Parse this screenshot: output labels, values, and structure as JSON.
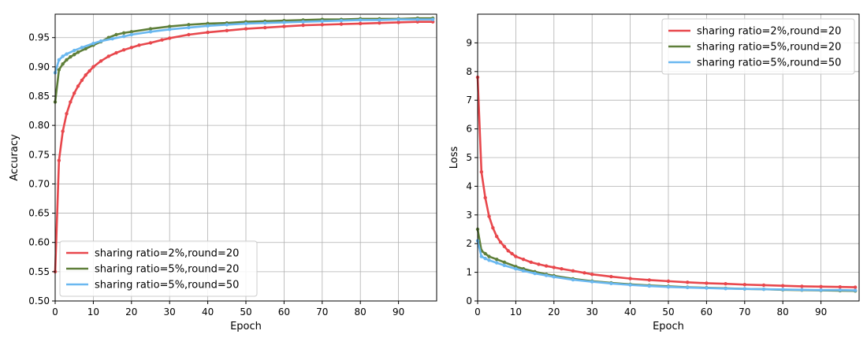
{
  "chart_data": [
    {
      "type": "line",
      "xlabel": "Epoch",
      "ylabel": "Accuracy",
      "xlim": [
        0,
        100
      ],
      "ylim": [
        0.5,
        0.99
      ],
      "xticks": [
        0,
        10,
        20,
        30,
        40,
        50,
        60,
        70,
        80,
        90
      ],
      "yticks": [
        0.5,
        0.55,
        0.6,
        0.65,
        0.7,
        0.75,
        0.8,
        0.85,
        0.9,
        0.95
      ],
      "grid": true,
      "legend_position": "lower-left",
      "series": [
        {
          "name": "sharing ratio=2%,round=20",
          "color": "#e8474c",
          "x": [
            0,
            1,
            2,
            3,
            4,
            5,
            6,
            7,
            8,
            9,
            10,
            12,
            14,
            16,
            18,
            20,
            22,
            25,
            28,
            30,
            35,
            40,
            45,
            50,
            55,
            60,
            65,
            70,
            75,
            80,
            85,
            90,
            95,
            99
          ],
          "values": [
            0.55,
            0.74,
            0.79,
            0.82,
            0.84,
            0.855,
            0.867,
            0.877,
            0.886,
            0.893,
            0.9,
            0.91,
            0.918,
            0.924,
            0.929,
            0.933,
            0.937,
            0.941,
            0.946,
            0.949,
            0.955,
            0.959,
            0.962,
            0.965,
            0.967,
            0.969,
            0.971,
            0.972,
            0.973,
            0.974,
            0.975,
            0.976,
            0.977,
            0.977
          ]
        },
        {
          "name": "sharing ratio=5%,round=20",
          "color": "#5f7f3a",
          "x": [
            0,
            1,
            2,
            3,
            4,
            5,
            6,
            8,
            10,
            12,
            14,
            16,
            18,
            20,
            25,
            30,
            35,
            40,
            45,
            50,
            55,
            60,
            65,
            70,
            75,
            80,
            85,
            90,
            95,
            99
          ],
          "values": [
            0.84,
            0.895,
            0.905,
            0.912,
            0.917,
            0.921,
            0.925,
            0.931,
            0.937,
            0.943,
            0.95,
            0.955,
            0.958,
            0.96,
            0.965,
            0.969,
            0.972,
            0.974,
            0.975,
            0.977,
            0.978,
            0.979,
            0.98,
            0.981,
            0.981,
            0.982,
            0.982,
            0.982,
            0.983,
            0.983
          ]
        },
        {
          "name": "sharing ratio=5%,round=50",
          "color": "#6ab8f0",
          "x": [
            0,
            1,
            2,
            3,
            5,
            7,
            10,
            12,
            15,
            18,
            20,
            25,
            30,
            35,
            40,
            45,
            50,
            55,
            60,
            65,
            70,
            75,
            80,
            85,
            90,
            95,
            99
          ],
          "values": [
            0.89,
            0.912,
            0.918,
            0.922,
            0.928,
            0.933,
            0.94,
            0.944,
            0.948,
            0.952,
            0.955,
            0.96,
            0.964,
            0.967,
            0.97,
            0.972,
            0.974,
            0.975,
            0.976,
            0.977,
            0.978,
            0.979,
            0.98,
            0.98,
            0.981,
            0.981,
            0.981
          ]
        }
      ]
    },
    {
      "type": "line",
      "xlabel": "Epoch",
      "ylabel": "Loss",
      "xlim": [
        0,
        100
      ],
      "ylim": [
        0,
        10
      ],
      "xticks": [
        0,
        10,
        20,
        30,
        40,
        50,
        60,
        70,
        80,
        90
      ],
      "yticks": [
        0,
        1,
        2,
        3,
        4,
        5,
        6,
        7,
        8,
        9
      ],
      "grid": true,
      "legend_position": "upper-right",
      "series": [
        {
          "name": "sharing ratio=2%,round=20",
          "color": "#e8474c",
          "x": [
            0,
            1,
            2,
            3,
            4,
            5,
            6,
            7,
            8,
            9,
            10,
            12,
            14,
            16,
            18,
            20,
            22,
            25,
            28,
            30,
            35,
            40,
            45,
            50,
            55,
            60,
            65,
            70,
            75,
            80,
            85,
            90,
            95,
            99
          ],
          "values": [
            7.8,
            4.5,
            3.6,
            2.95,
            2.55,
            2.25,
            2.05,
            1.9,
            1.75,
            1.65,
            1.55,
            1.45,
            1.35,
            1.28,
            1.22,
            1.17,
            1.12,
            1.05,
            0.98,
            0.93,
            0.85,
            0.78,
            0.73,
            0.69,
            0.65,
            0.62,
            0.6,
            0.57,
            0.55,
            0.53,
            0.51,
            0.5,
            0.49,
            0.48
          ]
        },
        {
          "name": "sharing ratio=5%,round=20",
          "color": "#5f7f3a",
          "x": [
            0,
            1,
            2,
            3,
            5,
            7,
            10,
            12,
            15,
            18,
            20,
            25,
            30,
            35,
            40,
            45,
            50,
            55,
            60,
            65,
            70,
            75,
            80,
            85,
            90,
            95,
            99
          ],
          "values": [
            2.5,
            1.75,
            1.65,
            1.55,
            1.45,
            1.35,
            1.2,
            1.12,
            1.02,
            0.93,
            0.88,
            0.77,
            0.69,
            0.63,
            0.58,
            0.54,
            0.51,
            0.48,
            0.46,
            0.44,
            0.42,
            0.41,
            0.39,
            0.38,
            0.37,
            0.36,
            0.35
          ]
        },
        {
          "name": "sharing ratio=5%,round=50",
          "color": "#6ab8f0",
          "x": [
            0,
            1,
            2,
            3,
            5,
            7,
            10,
            12,
            15,
            18,
            20,
            25,
            30,
            35,
            40,
            45,
            50,
            55,
            60,
            65,
            70,
            75,
            80,
            85,
            90,
            95,
            99
          ],
          "values": [
            2.1,
            1.55,
            1.48,
            1.42,
            1.33,
            1.24,
            1.12,
            1.05,
            0.96,
            0.89,
            0.84,
            0.74,
            0.67,
            0.61,
            0.56,
            0.52,
            0.49,
            0.47,
            0.45,
            0.43,
            0.42,
            0.41,
            0.4,
            0.39,
            0.38,
            0.38,
            0.37
          ]
        }
      ]
    }
  ]
}
